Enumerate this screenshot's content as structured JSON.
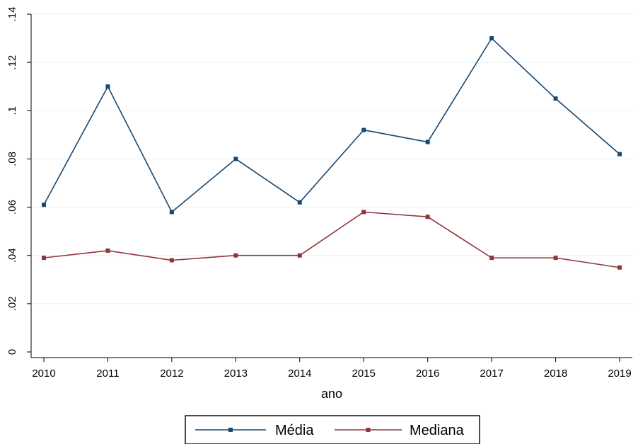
{
  "chart_data": {
    "type": "line",
    "title": "",
    "xlabel": "ano",
    "ylabel": "",
    "x": [
      2010,
      2011,
      2012,
      2013,
      2014,
      2015,
      2016,
      2017,
      2018,
      2019
    ],
    "x_tick_labels": [
      "2010",
      "2011",
      "2012",
      "2013",
      "2014",
      "2015",
      "2016",
      "2017",
      "2018",
      "2019"
    ],
    "y_ticks": [
      0,
      0.02,
      0.04,
      0.06,
      0.08,
      0.1,
      0.12,
      0.14
    ],
    "y_tick_labels": [
      "0",
      ".02",
      ".04",
      ".06",
      ".08",
      ".1",
      ".12",
      ".14"
    ],
    "ylim": [
      0,
      0.14
    ],
    "grid": true,
    "legend_position": "bottom",
    "series": [
      {
        "name": "Média",
        "color": "#1a476f",
        "values": [
          0.061,
          0.11,
          0.058,
          0.08,
          0.062,
          0.092,
          0.087,
          0.13,
          0.105,
          0.082
        ]
      },
      {
        "name": "Mediana",
        "color": "#90353b",
        "values": [
          0.039,
          0.042,
          0.038,
          0.04,
          0.04,
          0.058,
          0.056,
          0.039,
          0.039,
          0.035
        ]
      }
    ]
  }
}
